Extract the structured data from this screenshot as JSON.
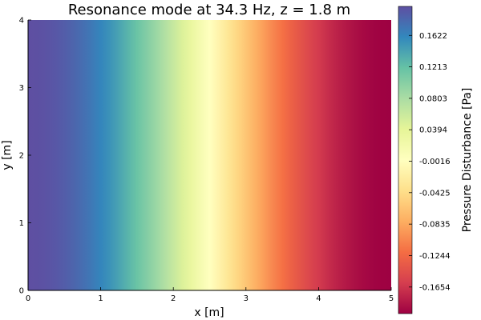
{
  "chart_data": {
    "type": "heatmap",
    "title": "Resonance mode at 34.3 Hz, z = 1.8 m",
    "xlabel": "x [m]",
    "ylabel": "y [m]",
    "colorbar_label": "Pressure Disturbance [Pa]",
    "xlim": [
      0,
      5
    ],
    "ylim": [
      0,
      4
    ],
    "x_ticks": [
      0,
      1,
      2,
      3,
      4,
      5
    ],
    "y_ticks": [
      0,
      1,
      2,
      3,
      4
    ],
    "colorbar_range": [
      -0.2,
      0.2
    ],
    "colorbar_ticks": [
      0.1622,
      0.1213,
      0.0803,
      0.0394,
      -0.0016,
      -0.0425,
      -0.0835,
      -0.1244,
      -0.1654
    ],
    "colorbar_tick_labels": [
      "0.1622",
      "0.1213",
      "0.0803",
      "0.0394",
      "-0.0016",
      "-0.0425",
      "-0.0835",
      "-0.1244",
      "-0.1654"
    ],
    "colormap": "Spectral",
    "colormap_stops": [
      "#9e0142",
      "#d53e4f",
      "#f46d43",
      "#fdae61",
      "#fee08b",
      "#ffffbf",
      "#e6f598",
      "#abdda4",
      "#66c2a5",
      "#3288bd",
      "#5e4fa2"
    ],
    "field": "pressure = 0.2 * cos(pi * x / 5), uniform in y",
    "mode_amplitude": 0.2,
    "grid": false
  }
}
